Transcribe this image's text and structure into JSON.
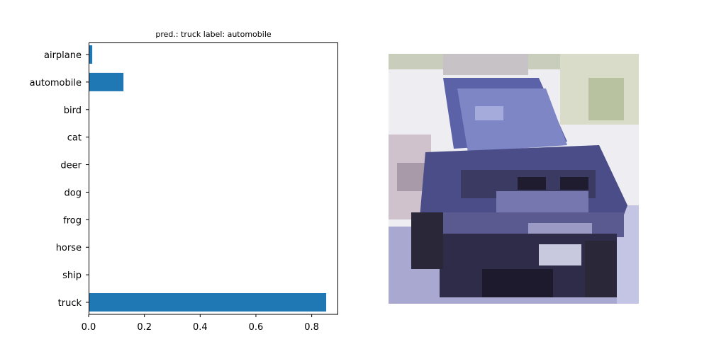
{
  "chart_data": [
    {
      "type": "bar",
      "orientation": "horizontal",
      "title": "pred.: truck   label: automobile",
      "categories": [
        "airplane",
        "automobile",
        "bird",
        "cat",
        "deer",
        "dog",
        "frog",
        "horse",
        "ship",
        "truck"
      ],
      "values": [
        0.013,
        0.125,
        0.001,
        0.001,
        0.001,
        0.001,
        0.001,
        0.001,
        0.001,
        0.852
      ],
      "xticks": [
        "0.0",
        "0.2",
        "0.4",
        "0.6",
        "0.8"
      ],
      "xlim": [
        0,
        0.895
      ],
      "bar_color": "#1f77b4",
      "grid": false
    },
    {
      "type": "image",
      "subject": "car",
      "pixel_grid": [
        32,
        32
      ],
      "palette": {
        "sky": "#eeeef2",
        "foliage": "#c9d0b8",
        "body_light": "#7e86c6",
        "body_dark": "#4a4d88",
        "shadow": "#26243a",
        "road": "#a8a8d0"
      },
      "axes_visible": false
    }
  ]
}
